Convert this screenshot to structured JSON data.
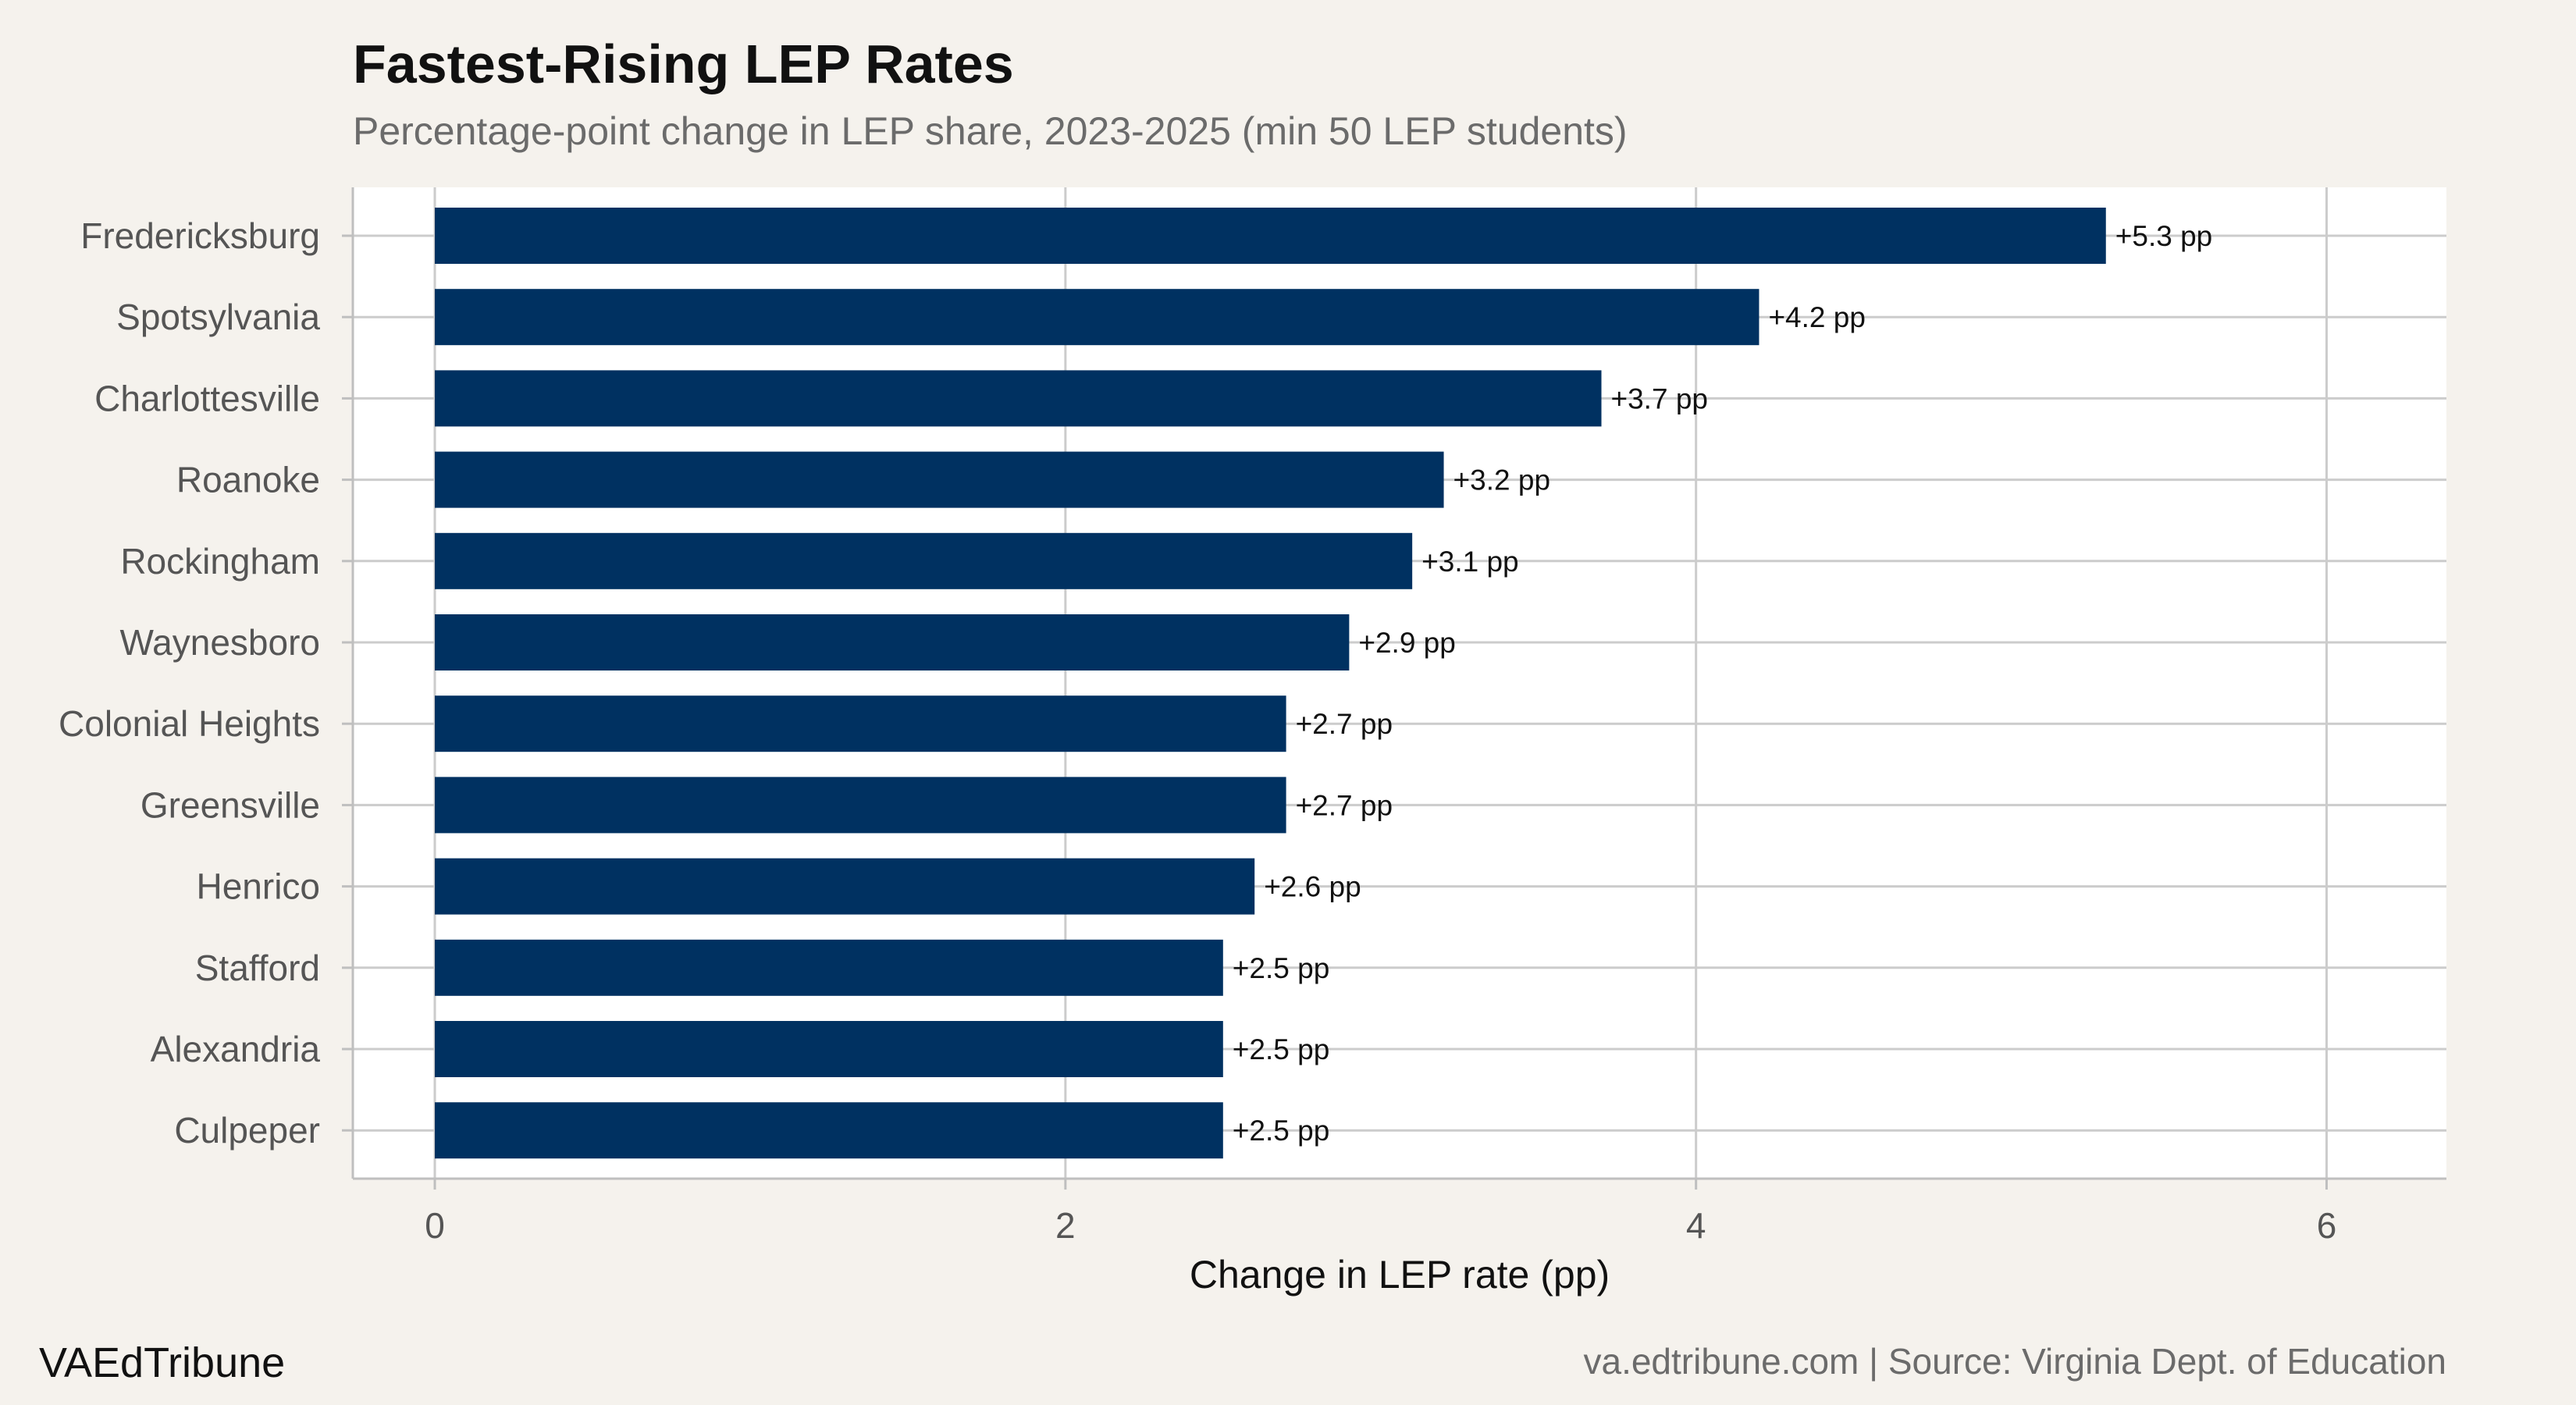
{
  "header": {
    "title": "Fastest-Rising LEP Rates",
    "subtitle": "Percentage-point change in LEP share, 2023-2025 (min 50 LEP students)"
  },
  "footer": {
    "brand": "VAEdTribune",
    "source": "va.edtribune.com | Source: Virginia Dept. of Education"
  },
  "colors": {
    "background": "#f5f2ed",
    "panel": "#ffffff",
    "bar": "#003161",
    "grid": "#cccccc"
  },
  "chart_data": {
    "type": "bar",
    "orientation": "horizontal",
    "categories": [
      "Fredericksburg",
      "Spotsylvania",
      "Charlottesville",
      "Roanoke",
      "Rockingham",
      "Waynesboro",
      "Colonial Heights",
      "Greensville",
      "Henrico",
      "Stafford",
      "Alexandria",
      "Culpeper"
    ],
    "values": [
      5.3,
      4.2,
      3.7,
      3.2,
      3.1,
      2.9,
      2.7,
      2.7,
      2.6,
      2.5,
      2.5,
      2.5
    ],
    "value_labels": [
      "+5.3 pp",
      "+4.2 pp",
      "+3.7 pp",
      "+3.2 pp",
      "+3.1 pp",
      "+2.9 pp",
      "+2.7 pp",
      "+2.7 pp",
      "+2.6 pp",
      "+2.5 pp",
      "+2.5 pp",
      "+2.5 pp"
    ],
    "title": "Fastest-Rising LEP Rates",
    "subtitle": "Percentage-point change in LEP share, 2023-2025 (min 50 LEP students)",
    "xlabel": "Change in LEP rate (pp)",
    "ylabel": "",
    "xlim": [
      -0.26,
      6.38
    ],
    "xticks": [
      0,
      2,
      4,
      6
    ],
    "xtick_labels": [
      "0",
      "2",
      "4",
      "6"
    ],
    "grid": true
  }
}
